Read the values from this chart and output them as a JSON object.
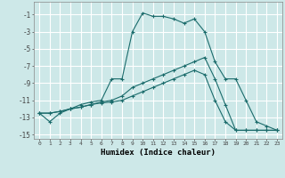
{
  "xlabel": "Humidex (Indice chaleur)",
  "bg_color": "#cde8e8",
  "grid_color": "#ffffff",
  "line_color": "#1a6b6b",
  "xlim": [
    -0.5,
    23.5
  ],
  "ylim": [
    -15.5,
    0.5
  ],
  "xticks": [
    0,
    1,
    2,
    3,
    4,
    5,
    6,
    7,
    8,
    9,
    10,
    11,
    12,
    13,
    14,
    15,
    16,
    17,
    18,
    19,
    20,
    21,
    22,
    23
  ],
  "yticks": [
    -15,
    -13,
    -11,
    -9,
    -7,
    -5,
    -3,
    -1
  ],
  "series": [
    {
      "x": [
        0,
        1,
        2,
        3,
        4,
        5,
        6,
        7,
        8,
        9,
        10,
        11,
        12,
        13,
        14,
        15,
        16,
        17,
        18,
        19,
        20,
        21,
        22,
        23
      ],
      "y": [
        -12.5,
        -13.5,
        -12.5,
        -12.0,
        -11.5,
        -11.2,
        -11.0,
        -8.5,
        -8.5,
        -3.0,
        -0.8,
        -1.2,
        -1.2,
        -1.5,
        -2.0,
        -1.5,
        -3.0,
        -6.5,
        -8.5,
        -8.5,
        -11.0,
        -13.5,
        -14.0,
        -14.5
      ]
    },
    {
      "x": [
        0,
        1,
        2,
        3,
        4,
        5,
        6,
        7,
        8,
        9,
        10,
        11,
        12,
        13,
        14,
        15,
        16,
        17,
        18,
        19,
        20,
        21,
        22,
        23
      ],
      "y": [
        -12.5,
        -12.5,
        -12.3,
        -12.0,
        -11.8,
        -11.5,
        -11.2,
        -11.0,
        -10.5,
        -9.5,
        -9.0,
        -8.5,
        -8.0,
        -7.5,
        -7.0,
        -6.5,
        -6.0,
        -8.5,
        -11.5,
        -14.5,
        -14.5,
        -14.5,
        -14.5,
        -14.5
      ]
    },
    {
      "x": [
        0,
        1,
        2,
        3,
        4,
        5,
        6,
        7,
        8,
        9,
        10,
        11,
        12,
        13,
        14,
        15,
        16,
        17,
        18,
        19,
        20,
        21,
        22,
        23
      ],
      "y": [
        -12.5,
        -12.5,
        -12.3,
        -12.0,
        -11.8,
        -11.5,
        -11.3,
        -11.2,
        -11.0,
        -10.5,
        -10.0,
        -9.5,
        -9.0,
        -8.5,
        -8.0,
        -7.5,
        -8.0,
        -11.0,
        -13.5,
        -14.5,
        -14.5,
        -14.5,
        -14.5,
        -14.5
      ]
    }
  ]
}
